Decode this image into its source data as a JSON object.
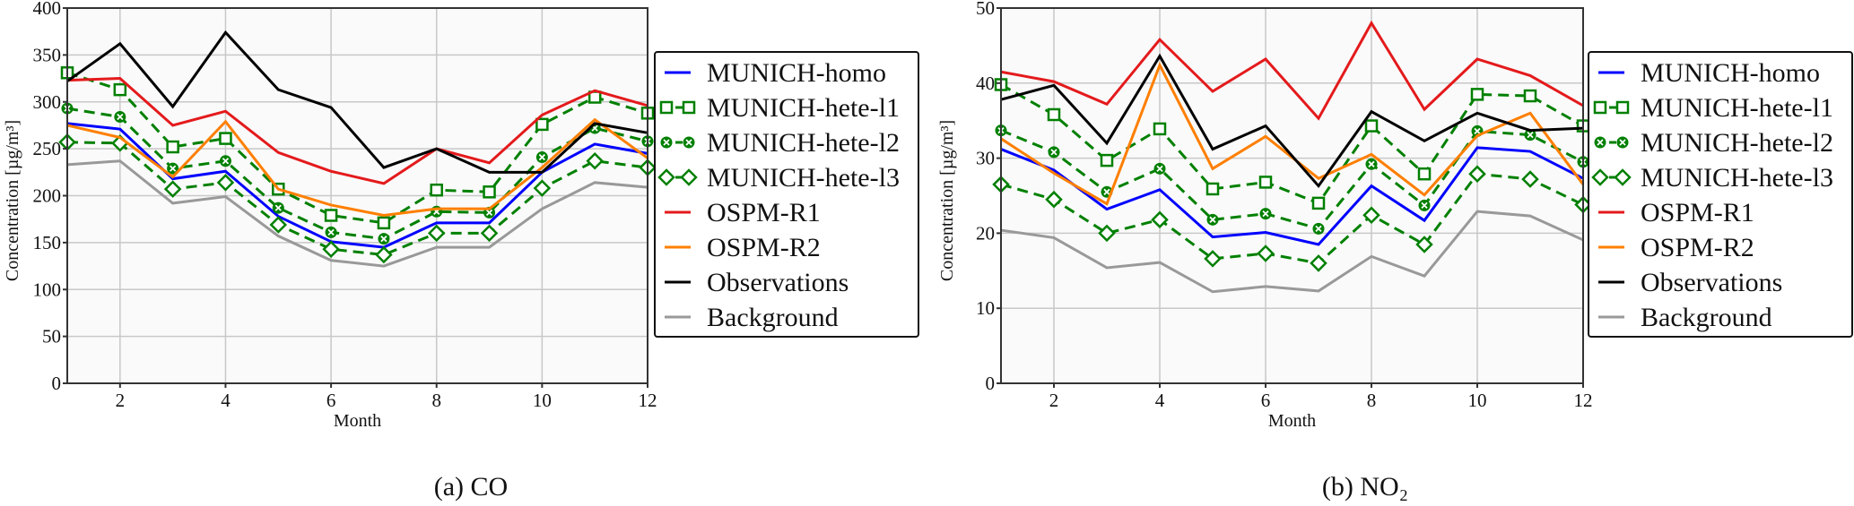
{
  "chart_data": [
    {
      "type": "line",
      "caption": "(a) CO",
      "xlabel": "Month",
      "ylabel": "Concentration [µg/m³]",
      "xlim": [
        1,
        12
      ],
      "ylim": [
        0,
        400
      ],
      "xticks": [
        2,
        4,
        6,
        8,
        10,
        12
      ],
      "yticks": [
        0,
        50,
        100,
        150,
        200,
        250,
        300,
        350,
        400
      ],
      "grid": true,
      "legend_position": "right-outside",
      "x": [
        1,
        2,
        3,
        4,
        5,
        6,
        7,
        8,
        9,
        10,
        11,
        12
      ],
      "series": [
        {
          "name": "MUNICH-homo",
          "color": "#0000ff",
          "style": "solid",
          "marker": "none",
          "values": [
            277,
            271,
            218,
            226,
            178,
            151,
            145,
            171,
            171,
            225,
            255,
            245
          ]
        },
        {
          "name": "MUNICH-hete-l1",
          "color": "#008000",
          "style": "dashed",
          "marker": "square",
          "values": [
            331,
            313,
            252,
            261,
            207,
            179,
            171,
            206,
            204,
            276,
            305,
            288
          ]
        },
        {
          "name": "MUNICH-hete-l2",
          "color": "#008000",
          "style": "dashed",
          "marker": "x-circle",
          "values": [
            293,
            284,
            229,
            237,
            187,
            161,
            154,
            183,
            182,
            241,
            272,
            258
          ]
        },
        {
          "name": "MUNICH-hete-l3",
          "color": "#008000",
          "style": "dashed",
          "marker": "diamond",
          "values": [
            257,
            256,
            207,
            214,
            169,
            143,
            137,
            160,
            160,
            208,
            237,
            230
          ]
        },
        {
          "name": "OSPM-R1",
          "color": "#e41a1c",
          "style": "solid",
          "marker": "none",
          "values": [
            323,
            325,
            275,
            290,
            246,
            226,
            213,
            250,
            235,
            286,
            312,
            296
          ]
        },
        {
          "name": "OSPM-R2",
          "color": "#ff7f00",
          "style": "solid",
          "marker": "none",
          "values": [
            275,
            262,
            220,
            279,
            207,
            190,
            179,
            186,
            186,
            230,
            281,
            240
          ]
        },
        {
          "name": "Observations",
          "color": "#000000",
          "style": "solid",
          "marker": "none",
          "values": [
            322,
            362,
            295,
            374,
            313,
            294,
            230,
            250,
            225,
            225,
            277,
            267
          ]
        },
        {
          "name": "Background",
          "color": "#999999",
          "style": "solid",
          "marker": "none",
          "values": [
            233,
            237,
            192,
            199,
            157,
            131,
            125,
            145,
            145,
            186,
            214,
            209
          ]
        }
      ]
    },
    {
      "type": "line",
      "caption": "(b) NO₂",
      "xlabel": "Month",
      "ylabel": "Concentration [µg/m³]",
      "xlim": [
        1,
        12
      ],
      "ylim": [
        0,
        50
      ],
      "xticks": [
        2,
        4,
        6,
        8,
        10,
        12
      ],
      "yticks": [
        0,
        10,
        20,
        30,
        40,
        50
      ],
      "grid": true,
      "legend_position": "right-outside",
      "x": [
        1,
        2,
        3,
        4,
        5,
        6,
        7,
        8,
        9,
        10,
        11,
        12
      ],
      "series": [
        {
          "name": "MUNICH-homo",
          "color": "#0000ff",
          "style": "solid",
          "marker": "none",
          "values": [
            31.2,
            28.4,
            23.2,
            25.8,
            19.5,
            20.1,
            18.5,
            26.3,
            21.7,
            31.4,
            30.9,
            27.3
          ]
        },
        {
          "name": "MUNICH-hete-l1",
          "color": "#008000",
          "style": "dashed",
          "marker": "square",
          "values": [
            39.8,
            35.8,
            29.7,
            33.9,
            25.9,
            26.8,
            24.0,
            34.3,
            27.9,
            38.5,
            38.3,
            34.3
          ]
        },
        {
          "name": "MUNICH-hete-l2",
          "color": "#008000",
          "style": "dashed",
          "marker": "x-circle",
          "values": [
            33.7,
            30.8,
            25.5,
            28.6,
            21.8,
            22.6,
            20.6,
            29.2,
            23.7,
            33.6,
            33.1,
            29.5
          ]
        },
        {
          "name": "MUNICH-hete-l3",
          "color": "#008000",
          "style": "dashed",
          "marker": "diamond",
          "values": [
            26.5,
            24.5,
            20.0,
            21.8,
            16.6,
            17.3,
            16.0,
            22.4,
            18.5,
            27.9,
            27.2,
            23.8
          ]
        },
        {
          "name": "OSPM-R1",
          "color": "#e41a1c",
          "style": "solid",
          "marker": "none",
          "values": [
            41.5,
            40.2,
            37.2,
            45.8,
            38.9,
            43.2,
            35.3,
            48.0,
            36.5,
            43.2,
            41.0,
            37.0
          ]
        },
        {
          "name": "OSPM-R2",
          "color": "#ff7f00",
          "style": "solid",
          "marker": "none",
          "values": [
            32.6,
            28.0,
            23.9,
            42.4,
            28.6,
            32.9,
            27.3,
            30.5,
            25.1,
            33.0,
            36.0,
            26.5
          ]
        },
        {
          "name": "Observations",
          "color": "#000000",
          "style": "solid",
          "marker": "none",
          "values": [
            37.8,
            39.7,
            32.0,
            43.6,
            31.2,
            34.3,
            26.3,
            36.2,
            32.3,
            36.0,
            33.7,
            34.0
          ]
        },
        {
          "name": "Background",
          "color": "#999999",
          "style": "solid",
          "marker": "none",
          "values": [
            20.4,
            19.4,
            15.4,
            16.1,
            12.2,
            12.9,
            12.3,
            16.9,
            14.3,
            22.9,
            22.3,
            19.1
          ]
        }
      ]
    }
  ]
}
